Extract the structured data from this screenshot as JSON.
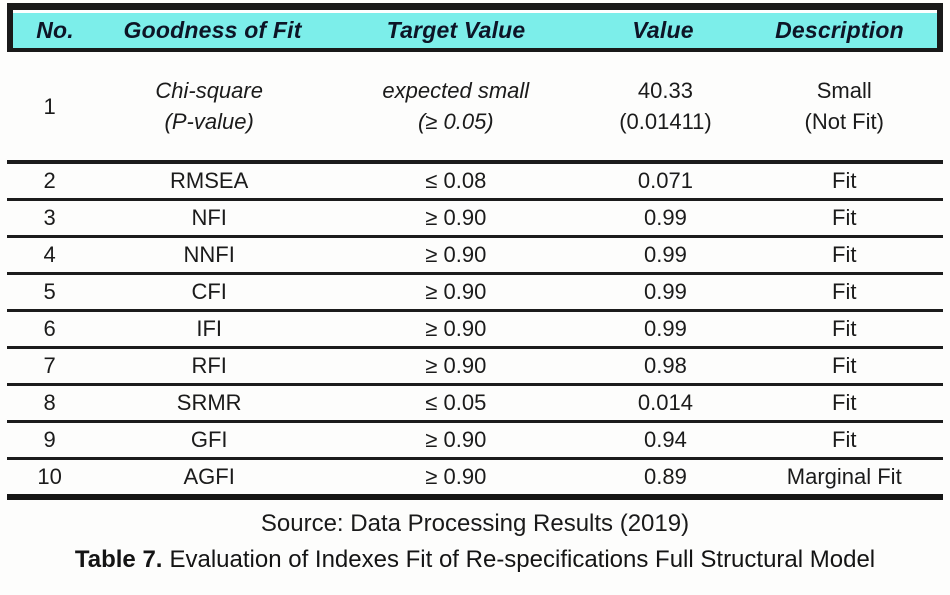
{
  "colors": {
    "header_bg": "#7ceeea",
    "line": "#1b1b1b",
    "text": "#1c1c1c"
  },
  "table": {
    "header": {
      "no": "No.",
      "goodness": "Goodness of Fit",
      "target": "Target Value",
      "value": "Value",
      "description": "Description"
    },
    "row_chi": {
      "no": "1",
      "goodness_line1": "Chi-square",
      "goodness_line2": "(P-value)",
      "target_line1": "expected small",
      "target_line2": "(≥ 0.05)",
      "value_line1": "40.33",
      "value_line2": "(0.01411)",
      "description_line1": "Small",
      "description_line2": "(Not Fit)"
    },
    "rows": [
      {
        "no": "2",
        "goodness": "RMSEA",
        "target": "≤ 0.08",
        "value": "0.071",
        "description": "Fit"
      },
      {
        "no": "3",
        "goodness": "NFI",
        "target": "≥ 0.90",
        "value": "0.99",
        "description": "Fit"
      },
      {
        "no": "4",
        "goodness": "NNFI",
        "target": "≥ 0.90",
        "value": "0.99",
        "description": "Fit"
      },
      {
        "no": "5",
        "goodness": "CFI",
        "target": "≥ 0.90",
        "value": "0.99",
        "description": "Fit"
      },
      {
        "no": "6",
        "goodness": "IFI",
        "target": "≥ 0.90",
        "value": "0.99",
        "description": "Fit"
      },
      {
        "no": "7",
        "goodness": "RFI",
        "target": "≥ 0.90",
        "value": "0.98",
        "description": "Fit"
      },
      {
        "no": "8",
        "goodness": "SRMR",
        "target": "≤ 0.05",
        "value": "0.014",
        "description": "Fit"
      },
      {
        "no": "9",
        "goodness": "GFI",
        "target": "≥ 0.90",
        "value": "0.94",
        "description": "Fit"
      },
      {
        "no": "10",
        "goodness": "AGFI",
        "target": "≥ 0.90",
        "value": "0.89",
        "description": "Marginal Fit"
      }
    ],
    "source": "Source: Data Processing Results (2019)",
    "caption": {
      "label": "Table 7.",
      "text": "Evaluation of Indexes Fit of Re-specifications Full Structural Model"
    }
  }
}
